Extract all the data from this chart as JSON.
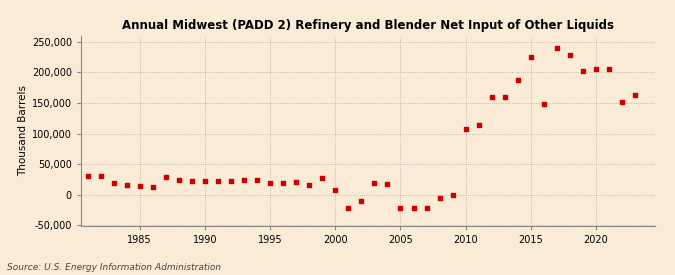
{
  "title": "Annual Midwest (PADD 2) Refinery and Blender Net Input of Other Liquids",
  "ylabel": "Thousand Barrels",
  "source": "Source: U.S. Energy Information Administration",
  "background_color": "#faebd7",
  "dot_color": "#cc0000",
  "years": [
    1981,
    1982,
    1983,
    1984,
    1985,
    1986,
    1987,
    1988,
    1989,
    1990,
    1991,
    1992,
    1993,
    1994,
    1995,
    1996,
    1997,
    1998,
    1999,
    2000,
    2001,
    2002,
    2003,
    2004,
    2005,
    2006,
    2007,
    2008,
    2009,
    2010,
    2011,
    2012,
    2013,
    2014,
    2015,
    2016,
    2017,
    2018,
    2019,
    2020,
    2021,
    2022,
    2023
  ],
  "values": [
    31000,
    31000,
    20000,
    16000,
    14000,
    13000,
    30000,
    25000,
    22000,
    22000,
    22000,
    22000,
    24000,
    25000,
    19000,
    19000,
    21000,
    16000,
    27000,
    8000,
    -22000,
    -10000,
    20000,
    18000,
    -22000,
    -22000,
    -22000,
    -5000,
    0,
    108000,
    115000,
    160000,
    160000,
    188000,
    225000,
    148000,
    240000,
    228000,
    202000,
    205000,
    205000,
    152000,
    163000
  ],
  "ylim": [
    -50000,
    260000
  ],
  "yticks": [
    -50000,
    0,
    50000,
    100000,
    150000,
    200000,
    250000
  ],
  "xlim": [
    1980.5,
    2024.5
  ],
  "xticks": [
    1985,
    1990,
    1995,
    2000,
    2005,
    2010,
    2015,
    2020
  ]
}
